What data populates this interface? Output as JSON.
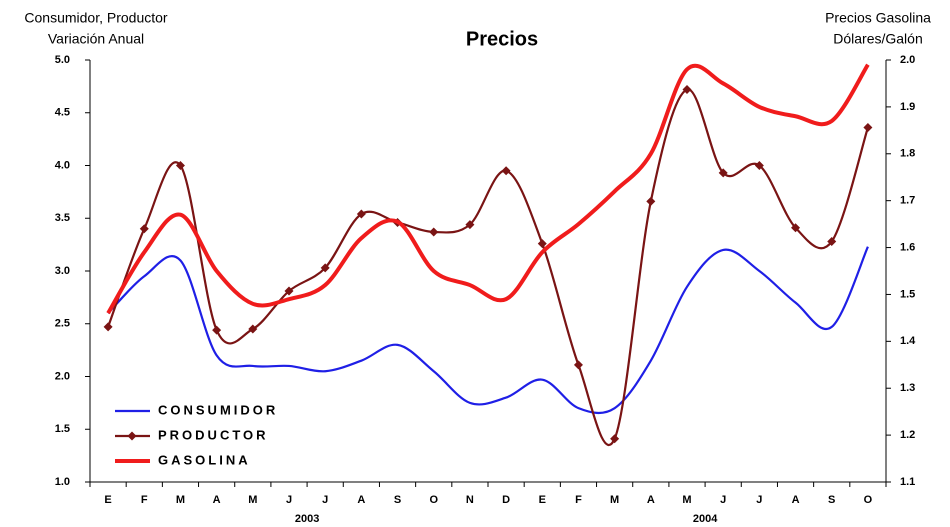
{
  "chart_data": {
    "type": "line",
    "title": "Precios",
    "y_title": [
      "Consumidor, Productor",
      "Variación Anual"
    ],
    "y2_title": [
      "Precios Gasolina",
      "Dólares/Galón"
    ],
    "categories": [
      "E",
      "F",
      "M",
      "A",
      "M",
      "J",
      "J",
      "A",
      "S",
      "O",
      "N",
      "D",
      "E",
      "F",
      "M",
      "A",
      "M",
      "J",
      "J",
      "A",
      "S",
      "O"
    ],
    "year_groups": [
      {
        "label": "2003",
        "count": 12
      },
      {
        "label": "2004",
        "count": 10
      }
    ],
    "ylim": [
      1.0,
      5.0
    ],
    "yticks": [
      {
        "value": 1.0,
        "label": "1.0"
      },
      1.5,
      {
        "value": 2.0,
        "label": "2.0"
      },
      2.5,
      {
        "value": 3.0,
        "label": "3.0"
      },
      3.5,
      {
        "value": 4.0,
        "label": "4.0"
      },
      4.5,
      {
        "value": 5.0,
        "label": "5.0"
      }
    ],
    "y2lim": [
      1.1,
      2.0
    ],
    "y2ticks": [
      1.1,
      1.2,
      1.3,
      1.4,
      1.5,
      1.6,
      1.7,
      1.8,
      1.9,
      {
        "value": 2.0,
        "label": "2.0"
      }
    ],
    "grid": false,
    "legend": "lower-left",
    "series": [
      {
        "name": "CONSUMIDOR",
        "color": "#1f1fe6",
        "marker": false,
        "values": [
          2.6,
          2.95,
          3.1,
          2.2,
          2.1,
          2.1,
          2.05,
          2.15,
          2.3,
          2.05,
          1.75,
          1.8,
          1.97,
          1.7,
          1.7,
          2.15,
          2.85,
          3.2,
          3.0,
          2.7,
          2.47,
          3.23
        ]
      },
      {
        "name": "PRODUCTOR",
        "color": "#7a1414",
        "marker": true,
        "values": [
          2.47,
          3.4,
          4.0,
          2.44,
          2.45,
          2.81,
          3.03,
          3.54,
          3.46,
          3.37,
          3.44,
          3.95,
          3.26,
          2.11,
          1.41,
          3.66,
          4.72,
          3.93,
          4.0,
          3.41,
          3.28,
          4.36
        ]
      },
      {
        "name": "GASOLINA",
        "color": "#f01c1c",
        "marker": false,
        "axis": "y2",
        "values": [
          1.46,
          1.59,
          1.67,
          1.55,
          1.48,
          1.49,
          1.52,
          1.62,
          1.655,
          1.55,
          1.52,
          1.49,
          1.59,
          1.65,
          1.72,
          1.8,
          1.98,
          1.95,
          1.9,
          1.88,
          1.87,
          1.99
        ]
      }
    ]
  }
}
